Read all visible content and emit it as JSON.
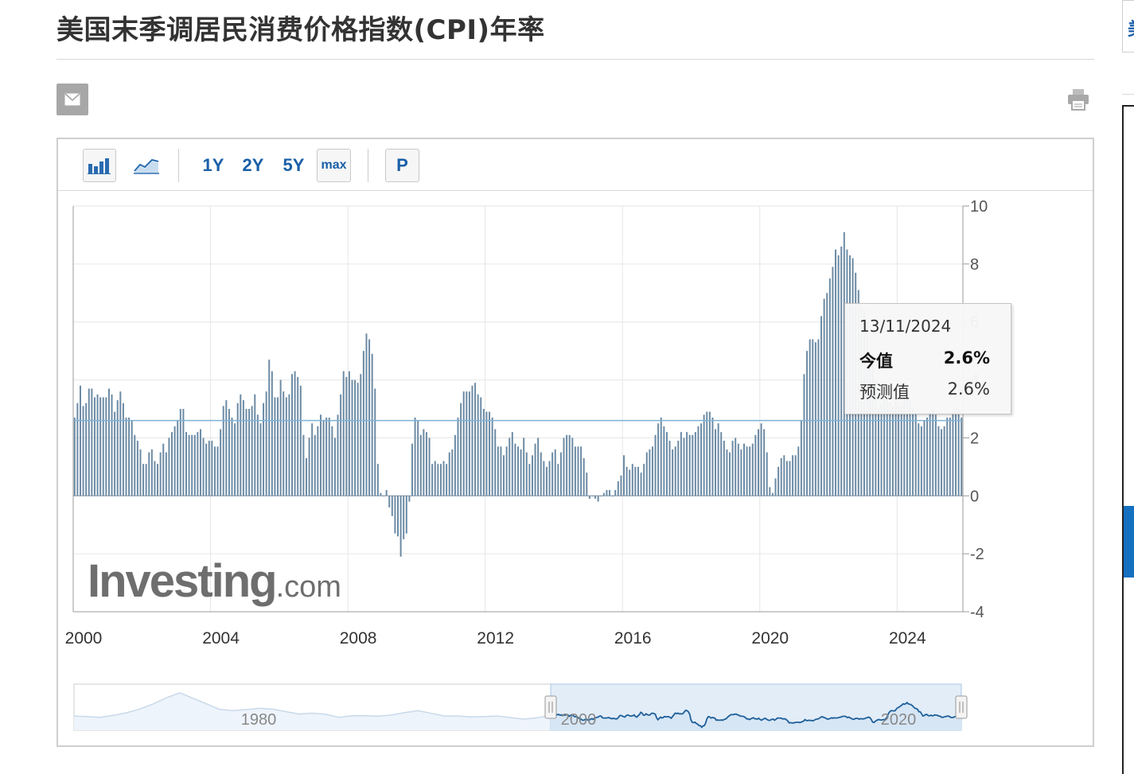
{
  "page": {
    "title": "美国末季调居民消费价格指数(CPI)年率"
  },
  "icons": {
    "mail": "mail-icon",
    "print": "print-icon",
    "bar_chart": "bar-chart-icon",
    "line_chart": "line-chart-icon"
  },
  "right_edge": {
    "fragment": "美"
  },
  "toolbar": {
    "ranges": [
      "1Y",
      "2Y",
      "5Y",
      "max"
    ],
    "p_label": "P"
  },
  "watermark": {
    "brand": "Investing",
    "suffix": ".com"
  },
  "tooltip": {
    "date": "13/11/2024",
    "actual_label": "今值",
    "actual_value": "2.6%",
    "forecast_label": "预测值",
    "forecast_value": "2.6%"
  },
  "colors": {
    "bar": "#6b8aa4",
    "reference_line": "#7fb2d6",
    "navigator_line": "#1f5f99",
    "navigator_fill": "#d6e6f5",
    "accent": "#1a5fa8"
  },
  "chart_data": {
    "type": "bar",
    "title": "美国末季调居民消费价格指数(CPI)年率",
    "x_start": "2000-01",
    "x_end": "2025-11",
    "frequency": "monthly",
    "x_ticks": [
      "2000",
      "2004",
      "2008",
      "2012",
      "2016",
      "2020",
      "2024"
    ],
    "y_ticks": [
      10,
      8,
      6,
      4,
      2,
      0,
      -2,
      -4
    ],
    "ylim": [
      -4,
      10
    ],
    "y_axis_side": "right",
    "grid": true,
    "reference_line": 2.6,
    "highlighted_date": "2024-11",
    "yearly_profile": [
      [
        2.7,
        3.2,
        3.8,
        3.1,
        3.2,
        3.7,
        3.7,
        3.4,
        3.5,
        3.4,
        3.4,
        3.4
      ],
      [
        3.7,
        3.5,
        2.9,
        3.3,
        3.6,
        3.2,
        2.7,
        2.7,
        2.6,
        2.1,
        1.9,
        1.6
      ],
      [
        1.1,
        1.1,
        1.5,
        1.6,
        1.2,
        1.1,
        1.5,
        1.8,
        1.5,
        2.0,
        2.2,
        2.4
      ],
      [
        2.6,
        3.0,
        3.0,
        2.2,
        2.1,
        2.1,
        2.1,
        2.2,
        2.3,
        2.0,
        1.8,
        1.9
      ],
      [
        1.9,
        1.7,
        1.7,
        2.3,
        3.1,
        3.3,
        3.0,
        2.7,
        2.5,
        3.2,
        3.5,
        3.3
      ],
      [
        3.0,
        3.0,
        3.1,
        3.5,
        2.8,
        2.5,
        3.2,
        3.6,
        4.7,
        4.3,
        3.4,
        3.4
      ],
      [
        4.0,
        3.6,
        3.4,
        3.5,
        4.2,
        4.3,
        4.1,
        3.8,
        2.1,
        1.3,
        2.0,
        2.5
      ],
      [
        2.1,
        2.4,
        2.8,
        2.6,
        2.7,
        2.7,
        2.4,
        2.0,
        2.8,
        3.5,
        4.3,
        4.1
      ],
      [
        4.3,
        4.0,
        4.0,
        3.9,
        4.2,
        5.0,
        5.6,
        5.4,
        4.9,
        3.7,
        1.1,
        0.1
      ],
      [
        0.0,
        0.2,
        -0.4,
        -0.7,
        -1.3,
        -1.4,
        -2.1,
        -1.5,
        -1.3,
        -0.2,
        1.8,
        2.7
      ],
      [
        2.6,
        2.1,
        2.3,
        2.2,
        2.0,
        1.1,
        1.2,
        1.1,
        1.1,
        1.2,
        1.1,
        1.5
      ],
      [
        1.6,
        2.1,
        2.7,
        3.2,
        3.6,
        3.6,
        3.6,
        3.8,
        3.9,
        3.5,
        3.4,
        3.0
      ],
      [
        2.9,
        2.9,
        2.7,
        2.3,
        1.7,
        1.7,
        1.4,
        1.7,
        2.0,
        2.2,
        1.8,
        1.7
      ],
      [
        1.6,
        2.0,
        1.5,
        1.1,
        1.4,
        1.8,
        2.0,
        1.5,
        1.2,
        1.0,
        1.2,
        1.5
      ],
      [
        1.6,
        1.1,
        1.5,
        2.0,
        2.1,
        2.1,
        2.0,
        1.7,
        1.7,
        1.7,
        1.3,
        0.8
      ],
      [
        -0.1,
        0.0,
        -0.1,
        -0.2,
        0.0,
        0.1,
        0.2,
        0.2,
        0.0,
        0.2,
        0.5,
        0.7
      ],
      [
        1.4,
        1.0,
        0.9,
        1.1,
        1.0,
        1.0,
        0.8,
        1.1,
        1.5,
        1.6,
        1.7,
        2.1
      ],
      [
        2.5,
        2.7,
        2.4,
        2.2,
        1.9,
        1.6,
        1.7,
        1.9,
        2.2,
        2.0,
        2.2,
        2.1
      ],
      [
        2.1,
        2.2,
        2.4,
        2.5,
        2.8,
        2.9,
        2.9,
        2.7,
        2.3,
        2.5,
        2.2,
        1.9
      ],
      [
        1.6,
        1.5,
        1.9,
        2.0,
        1.8,
        1.6,
        1.8,
        1.7,
        1.7,
        1.8,
        2.1,
        2.3
      ],
      [
        2.5,
        2.3,
        1.5,
        0.3,
        0.1,
        0.6,
        1.0,
        1.3,
        1.4,
        1.2,
        1.2,
        1.4
      ],
      [
        1.4,
        1.7,
        2.6,
        4.2,
        5.0,
        5.4,
        5.4,
        5.3,
        5.4,
        6.2,
        6.8,
        7.0
      ],
      [
        7.5,
        7.9,
        8.5,
        8.3,
        8.6,
        9.1,
        8.5,
        8.3,
        8.2,
        7.7,
        7.1,
        6.5
      ],
      [
        6.4,
        6.0,
        5.0,
        4.9,
        4.0,
        3.0,
        3.2,
        3.7,
        3.7,
        3.2,
        3.1,
        3.4
      ],
      [
        3.1,
        3.2,
        3.5,
        3.4,
        3.3,
        3.0,
        2.9,
        2.5,
        2.4,
        2.6,
        2.7,
        2.9
      ],
      [
        3.0,
        2.8,
        2.4,
        2.3,
        2.4,
        2.7,
        2.7,
        2.9,
        3.0,
        3.0,
        2.7
      ]
    ],
    "navigator": {
      "tick_labels": [
        "1980",
        "2000",
        "2020"
      ],
      "selected_range": [
        "2000-01",
        "2025-11"
      ]
    }
  }
}
